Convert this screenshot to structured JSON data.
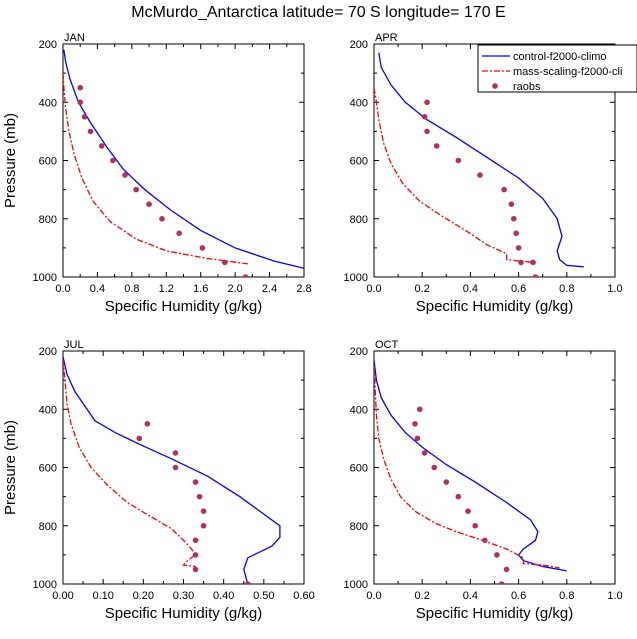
{
  "title": "McMurdo_Antarctica  latitude= 70 S longitude= 170 E",
  "colors": {
    "control": "#0000ff",
    "mass": "#ff0000",
    "raobs": "#b03060"
  },
  "legend": {
    "entries": [
      {
        "label": "control-f2000-climo",
        "style": "line-solid",
        "color": "#0000ff"
      },
      {
        "label": "mass-scaling-f2000-cli",
        "style": "line-dashed",
        "color": "#ff0000"
      },
      {
        "label": "raobs",
        "style": "marker",
        "color": "#b03060"
      }
    ]
  },
  "chart_data": [
    {
      "type": "line",
      "panel": "JAN",
      "xlabel": "Specific Humidity (g/kg)",
      "ylabel": "Pressure (mb)",
      "xlim": [
        0,
        2.8
      ],
      "ylim": [
        1000,
        200
      ],
      "y_reversed": true,
      "xticks": [
        0,
        0.4,
        0.8,
        1.2,
        1.6,
        2.0,
        2.4,
        2.8
      ],
      "xtick_labels": [
        "0.0",
        "0.4",
        "0.8",
        "1.2",
        "1.6",
        "2.0",
        "2.4",
        "2.8"
      ],
      "yticks": [
        200,
        400,
        600,
        800,
        1000
      ],
      "ytick_labels": [
        "200",
        "400",
        "600",
        "800",
        "1000"
      ],
      "series": [
        {
          "name": "control-f2000-climo",
          "style": "solid",
          "color": "#0000ff",
          "x": [
            0.01,
            0.03,
            0.08,
            0.18,
            0.32,
            0.5,
            0.7,
            0.95,
            1.25,
            1.6,
            2.0,
            2.45,
            2.8
          ],
          "y": [
            220,
            260,
            320,
            400,
            470,
            550,
            630,
            700,
            770,
            840,
            900,
            945,
            970
          ]
        },
        {
          "name": "mass-scaling-f2000-cli",
          "style": "dashed",
          "color": "#ff0000",
          "x": [
            0.0,
            0.01,
            0.03,
            0.07,
            0.13,
            0.22,
            0.35,
            0.55,
            0.85,
            1.2,
            1.65,
            2.15
          ],
          "y": [
            300,
            350,
            420,
            500,
            580,
            660,
            740,
            810,
            870,
            910,
            935,
            955
          ]
        },
        {
          "name": "raobs",
          "style": "markers",
          "color": "#b03060",
          "x": [
            0.2,
            0.2,
            0.25,
            0.32,
            0.45,
            0.58,
            0.72,
            0.85,
            1.0,
            1.15,
            1.35,
            1.62,
            1.88,
            2.12
          ],
          "y": [
            350,
            400,
            450,
            500,
            550,
            600,
            650,
            700,
            750,
            800,
            850,
            900,
            950,
            1000
          ]
        }
      ]
    },
    {
      "type": "line",
      "panel": "APR",
      "xlabel": "Specific Humidity (g/kg)",
      "ylabel": "",
      "xlim": [
        0,
        1.0
      ],
      "ylim": [
        1000,
        200
      ],
      "y_reversed": true,
      "xticks": [
        0,
        0.2,
        0.4,
        0.6,
        0.8,
        1.0
      ],
      "xtick_labels": [
        "0.0",
        "0.2",
        "0.4",
        "0.6",
        "0.8",
        "1.0"
      ],
      "yticks": [
        200,
        400,
        600,
        800,
        1000
      ],
      "ytick_labels": [
        "200",
        "400",
        "600",
        "800",
        "1000"
      ],
      "series": [
        {
          "name": "control-f2000-climo",
          "style": "solid",
          "color": "#0000ff",
          "x": [
            0.02,
            0.03,
            0.07,
            0.13,
            0.22,
            0.34,
            0.47,
            0.6,
            0.7,
            0.76,
            0.78,
            0.76,
            0.77,
            0.8,
            0.87
          ],
          "y": [
            230,
            280,
            340,
            400,
            460,
            520,
            590,
            660,
            730,
            800,
            860,
            910,
            940,
            960,
            965
          ]
        },
        {
          "name": "mass-scaling-f2000-cli",
          "style": "dashed",
          "color": "#ff0000",
          "x": [
            0.0,
            0.01,
            0.02,
            0.04,
            0.07,
            0.12,
            0.19,
            0.28,
            0.38,
            0.47,
            0.55,
            0.55,
            0.6,
            0.67
          ],
          "y": [
            350,
            400,
            460,
            540,
            610,
            680,
            740,
            790,
            840,
            890,
            920,
            940,
            945,
            950
          ]
        },
        {
          "name": "raobs",
          "style": "markers",
          "color": "#b03060",
          "x": [
            0.22,
            0.21,
            0.22,
            0.26,
            0.35,
            0.44,
            0.54,
            0.57,
            0.58,
            0.59,
            0.6,
            0.61,
            0.66,
            0.67
          ],
          "y": [
            400,
            450,
            500,
            550,
            600,
            650,
            700,
            750,
            800,
            850,
            900,
            950,
            950,
            1000
          ]
        }
      ]
    },
    {
      "type": "line",
      "panel": "JUL",
      "xlabel": "Specific Humidity (g/kg)",
      "ylabel": "Pressure (mb)",
      "xlim": [
        0,
        0.6
      ],
      "ylim": [
        1000,
        200
      ],
      "y_reversed": true,
      "xticks": [
        0,
        0.1,
        0.2,
        0.3,
        0.4,
        0.5,
        0.6
      ],
      "xtick_labels": [
        "0.00",
        "0.10",
        "0.20",
        "0.30",
        "0.40",
        "0.50",
        "0.60"
      ],
      "yticks": [
        200,
        400,
        600,
        800,
        1000
      ],
      "ytick_labels": [
        "200",
        "400",
        "600",
        "800",
        "1000"
      ],
      "series": [
        {
          "name": "control-f2000-climo",
          "style": "solid",
          "color": "#0000ff",
          "x": [
            0.0,
            0.01,
            0.03,
            0.06,
            0.08,
            0.13,
            0.19,
            0.27,
            0.36,
            0.44,
            0.5,
            0.54,
            0.54,
            0.52,
            0.46,
            0.45,
            0.46
          ],
          "y": [
            220,
            280,
            340,
            400,
            440,
            480,
            520,
            570,
            630,
            700,
            760,
            800,
            840,
            870,
            910,
            950,
            1000
          ]
        },
        {
          "name": "mass-scaling-f2000-cli",
          "style": "dashed",
          "color": "#ff0000",
          "x": [
            0.0,
            0.005,
            0.01,
            0.02,
            0.04,
            0.07,
            0.11,
            0.16,
            0.22,
            0.27,
            0.3,
            0.32,
            0.33,
            0.31,
            0.3,
            0.33
          ],
          "y": [
            230,
            300,
            380,
            450,
            530,
            600,
            660,
            720,
            770,
            810,
            850,
            880,
            900,
            920,
            935,
            940
          ]
        },
        {
          "name": "raobs",
          "style": "markers",
          "color": "#b03060",
          "x": [
            0.21,
            0.19,
            0.28,
            0.28,
            0.33,
            0.34,
            0.35,
            0.35,
            0.33,
            0.33,
            0.33,
            0.46
          ],
          "y": [
            450,
            500,
            550,
            600,
            650,
            700,
            750,
            800,
            850,
            900,
            950,
            1000
          ]
        }
      ]
    },
    {
      "type": "line",
      "panel": "OCT",
      "xlabel": "Specific Humidity (g/kg)",
      "ylabel": "",
      "xlim": [
        0,
        1.0
      ],
      "ylim": [
        1000,
        200
      ],
      "y_reversed": true,
      "xticks": [
        0,
        0.2,
        0.4,
        0.6,
        0.8,
        1.0
      ],
      "xtick_labels": [
        "0.0",
        "0.2",
        "0.4",
        "0.6",
        "0.8",
        "1.0"
      ],
      "yticks": [
        200,
        400,
        600,
        800,
        1000
      ],
      "ytick_labels": [
        "200",
        "400",
        "600",
        "800",
        "1000"
      ],
      "series": [
        {
          "name": "control-f2000-climo",
          "style": "solid",
          "color": "#0000ff",
          "x": [
            0.0,
            0.01,
            0.03,
            0.07,
            0.13,
            0.2,
            0.3,
            0.42,
            0.55,
            0.65,
            0.68,
            0.67,
            0.62,
            0.6,
            0.62,
            0.7,
            0.8
          ],
          "y": [
            230,
            300,
            360,
            420,
            480,
            530,
            590,
            650,
            720,
            780,
            820,
            850,
            880,
            900,
            920,
            940,
            955
          ]
        },
        {
          "name": "mass-scaling-f2000-cli",
          "style": "dashed",
          "color": "#ff0000",
          "x": [
            0.0,
            0.005,
            0.01,
            0.02,
            0.04,
            0.07,
            0.11,
            0.17,
            0.25,
            0.34,
            0.45,
            0.55,
            0.62,
            0.62,
            0.7,
            0.77
          ],
          "y": [
            250,
            330,
            420,
            500,
            570,
            640,
            700,
            750,
            790,
            820,
            850,
            880,
            910,
            930,
            935,
            945
          ]
        },
        {
          "name": "raobs",
          "style": "markers",
          "color": "#b03060",
          "x": [
            0.19,
            0.17,
            0.18,
            0.21,
            0.25,
            0.3,
            0.35,
            0.39,
            0.42,
            0.46,
            0.51,
            0.55,
            0.53
          ],
          "y": [
            400,
            450,
            500,
            550,
            600,
            650,
            700,
            750,
            800,
            850,
            900,
            950,
            1000
          ]
        }
      ]
    }
  ]
}
